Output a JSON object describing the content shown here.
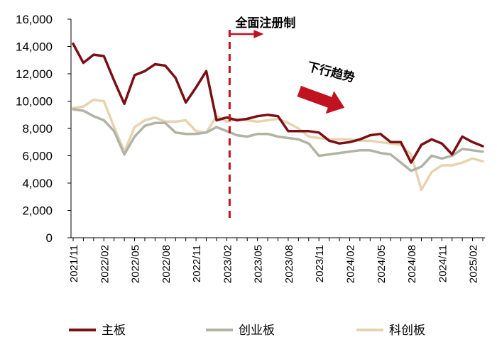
{
  "chart_data": {
    "type": "line",
    "title": "",
    "xlabel": "",
    "ylabel": "",
    "ylim": [
      0,
      16000
    ],
    "yticks": [
      "0",
      "2,000",
      "4,000",
      "6,000",
      "8,000",
      "10,000",
      "12,000",
      "14,000",
      "16,000"
    ],
    "yticks_values": [
      0,
      2000,
      4000,
      6000,
      8000,
      10000,
      12000,
      14000,
      16000
    ],
    "x": [
      "2021/11",
      "2021/12",
      "2022/01",
      "2022/02",
      "2022/03",
      "2022/04",
      "2022/05",
      "2022/06",
      "2022/07",
      "2022/08",
      "2022/09",
      "2022/10",
      "2022/11",
      "2022/12",
      "2023/01",
      "2023/02",
      "2023/03",
      "2023/04",
      "2023/05",
      "2023/06",
      "2023/07",
      "2023/08",
      "2023/09",
      "2023/10",
      "2023/11",
      "2023/12",
      "2024/01",
      "2024/02",
      "2024/03",
      "2024/04",
      "2024/05",
      "2024/06",
      "2024/07",
      "2024/08",
      "2024/09",
      "2024/10",
      "2024/11",
      "2024/12",
      "2025/01",
      "2025/02",
      "2025/03"
    ],
    "xticks": [
      "2021/11",
      "2022/02",
      "2022/05",
      "2022/08",
      "2022/11",
      "2023/02",
      "2023/05",
      "2023/08",
      "2023/11",
      "2024/02",
      "2024/05",
      "2024/08",
      "2024/11",
      "2025/02"
    ],
    "series": [
      {
        "name": "主板",
        "color": "#7a0f14",
        "values": [
          14200,
          12800,
          13400,
          13300,
          11500,
          9800,
          11900,
          12200,
          12700,
          12600,
          11700,
          9900,
          11000,
          12200,
          8600,
          8800,
          8600,
          8700,
          8900,
          9000,
          8900,
          7800,
          7800,
          7800,
          7700,
          7100,
          6900,
          7000,
          7200,
          7500,
          7600,
          7000,
          7000,
          5500,
          6800,
          7200,
          6900,
          6100,
          7400,
          7000,
          6700
        ],
        "dash": ""
      },
      {
        "name": "创业板",
        "color": "#b2b2a6",
        "values": [
          9400,
          9300,
          8900,
          8600,
          7800,
          6100,
          7400,
          8200,
          8400,
          8400,
          7700,
          7600,
          7600,
          7700,
          8100,
          7800,
          7500,
          7400,
          7600,
          7600,
          7400,
          7300,
          7200,
          6900,
          6000,
          6100,
          6200,
          6300,
          6400,
          6400,
          6200,
          6100,
          5500,
          4900,
          5200,
          6000,
          5800,
          6000,
          6500,
          6400,
          6300
        ],
        "dash": ""
      },
      {
        "name": "科创板",
        "color": "#e8d3b1",
        "values": [
          9500,
          9600,
          10100,
          10000,
          8100,
          6300,
          8100,
          8600,
          8800,
          8500,
          8500,
          8600,
          7800,
          7700,
          8900,
          8500,
          8700,
          8600,
          8500,
          8600,
          8700,
          8400,
          8000,
          7400,
          7300,
          7200,
          7200,
          7200,
          7100,
          7100,
          7000,
          6900,
          6800,
          6100,
          3500,
          4800,
          5300,
          5300,
          5500,
          5800,
          5600
        ]
      }
    ],
    "annotations": {
      "policy_label": "全面注册制",
      "policy_x": "2023/02",
      "trend_label": "下行趋势"
    },
    "legend_position": "bottom",
    "grid": false
  },
  "legend": {
    "items": [
      {
        "label": "主板",
        "color": "#7a0f14"
      },
      {
        "label": "创业板",
        "color": "#b2b2a6"
      },
      {
        "label": "科创板",
        "color": "#e8d3b1"
      }
    ]
  },
  "colors": {
    "policy_line": "#c1121f",
    "trend_arrow": "#c1121f",
    "axis": "#000000"
  }
}
